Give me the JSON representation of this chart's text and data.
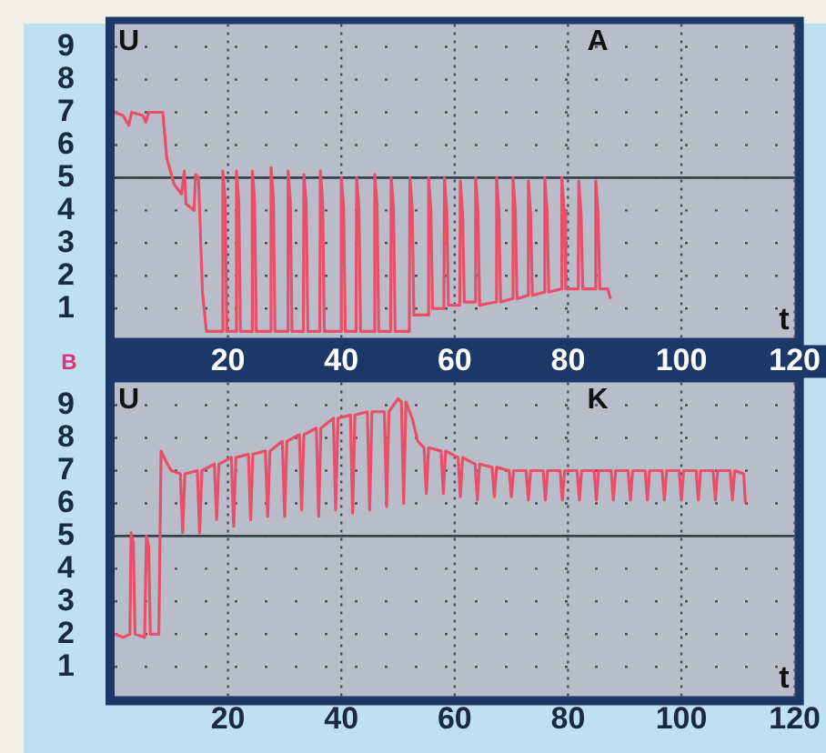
{
  "chart_data": [
    {
      "type": "line",
      "title": "A",
      "xlabel": "t",
      "ylabel": "U",
      "annotations": [
        "B"
      ],
      "xlim": [
        0,
        120
      ],
      "ylim": [
        0.1,
        9.7
      ],
      "xticks": [
        20,
        40,
        60,
        80,
        100,
        120
      ],
      "yticks": [
        1,
        2,
        3,
        4,
        5,
        6,
        7,
        8,
        9
      ],
      "grid": true,
      "legend": false,
      "marker": "none",
      "line_style": "solid",
      "ref_lines": [
        {
          "axis": "y",
          "value": 5,
          "color": "#33434a"
        }
      ],
      "series": [
        {
          "color": "#e8506a",
          "x": [
            0,
            1.5,
            2.5,
            3,
            5,
            5.5,
            6,
            8.5,
            9.2,
            10.5,
            11.8,
            12.3,
            12.6,
            14.0,
            14.3,
            14.8,
            15.5,
            16.2,
            19.0,
            19.1,
            19.5,
            19.8,
            21.4,
            21.5,
            21.9,
            22.2,
            24.2,
            24.3,
            24.7,
            25.0,
            27.5,
            27.6,
            28.0,
            28.3,
            30.5,
            30.6,
            31.0,
            31.3,
            33.3,
            33.4,
            33.8,
            34.1,
            36.2,
            36.3,
            36.7,
            37.0,
            39.9,
            40.0,
            40.4,
            40.7,
            42.6,
            42.7,
            43.1,
            43.4,
            45.8,
            45.9,
            46.3,
            46.6,
            48.7,
            48.8,
            49.2,
            49.5,
            52.0,
            52.1,
            52.5,
            52.8,
            55.3,
            55.4,
            55.8,
            56.1,
            58.1,
            58.2,
            58.6,
            58.9,
            60.9,
            61.0,
            61.4,
            61.7,
            63.6,
            63.7,
            64.1,
            64.4,
            67.3,
            67.4,
            67.8,
            68.1,
            70.2,
            70.3,
            70.7,
            71.0,
            72.9,
            73.0,
            73.4,
            73.7,
            75.8,
            75.9,
            76.3,
            76.6,
            78.8,
            78.9,
            79.3,
            79.6,
            81.8,
            81.9,
            82.3,
            82.6,
            84.8,
            84.9,
            85.3,
            85.6,
            87.0,
            87.5
          ],
          "values": [
            7.0,
            6.9,
            6.6,
            7.0,
            6.9,
            6.7,
            7.0,
            7.0,
            5.6,
            4.8,
            4.5,
            5.2,
            4.2,
            4.0,
            5.1,
            5.0,
            1.5,
            0.3,
            0.3,
            5.2,
            4.3,
            0.3,
            0.3,
            5.2,
            4.3,
            0.3,
            0.3,
            5.2,
            4.3,
            0.3,
            0.3,
            5.3,
            4.4,
            0.3,
            0.3,
            5.2,
            4.3,
            0.3,
            0.3,
            5.1,
            4.2,
            0.3,
            0.3,
            5.2,
            4.3,
            0.3,
            0.3,
            5.0,
            4.1,
            0.3,
            0.3,
            5.0,
            4.1,
            0.3,
            0.3,
            5.1,
            4.2,
            0.3,
            0.3,
            5.0,
            4.1,
            0.3,
            0.3,
            5.0,
            4.1,
            0.8,
            0.8,
            5.0,
            4.0,
            1.0,
            1.0,
            5.0,
            4.0,
            1.1,
            1.1,
            4.9,
            3.9,
            1.2,
            1.2,
            5.0,
            4.0,
            1.1,
            1.2,
            5.0,
            4.0,
            1.2,
            1.3,
            5.0,
            4.0,
            1.3,
            1.4,
            4.9,
            3.9,
            1.4,
            1.5,
            5.0,
            4.0,
            1.5,
            1.6,
            5.0,
            4.0,
            1.6,
            1.6,
            4.9,
            3.9,
            1.6,
            1.6,
            4.9,
            3.9,
            1.6,
            1.6,
            1.3
          ]
        }
      ]
    },
    {
      "type": "line",
      "title": "K",
      "xlabel": "t",
      "ylabel": "U",
      "xlim": [
        0,
        120
      ],
      "ylim": [
        0.1,
        9.7
      ],
      "xticks": [
        20,
        40,
        60,
        80,
        100,
        120
      ],
      "yticks": [
        1,
        2,
        3,
        4,
        5,
        6,
        7,
        8,
        9
      ],
      "grid": true,
      "legend": false,
      "marker": "none",
      "line_style": "solid",
      "ref_lines": [
        {
          "axis": "y",
          "value": 5,
          "color": "#33434a"
        }
      ],
      "series": [
        {
          "color": "#e8506a",
          "x": [
            0,
            1.5,
            2.7,
            2.9,
            3.3,
            3.6,
            5.3,
            5.6,
            6.0,
            6.3,
            7.8,
            8.2,
            9,
            10,
            11.6,
            12,
            12.4,
            14.6,
            15,
            15.4,
            17.6,
            18,
            18.4,
            20.6,
            21,
            21.4,
            23.6,
            24,
            24.4,
            26.6,
            27,
            27.4,
            29.6,
            30,
            30.4,
            32.6,
            33,
            33.4,
            35.6,
            36,
            36.4,
            38.6,
            39,
            39.4,
            41.6,
            42,
            42.4,
            44.6,
            45,
            45.4,
            47.6,
            48,
            48.4,
            50,
            50.6,
            51,
            51.4,
            52.5,
            53.5,
            54.6,
            55,
            55.4,
            57.6,
            58,
            58.4,
            60.6,
            61,
            61.4,
            63.6,
            64,
            64.4,
            66.6,
            67,
            67.4,
            69.6,
            70,
            70.4,
            72.6,
            73,
            73.4,
            75.6,
            76,
            76.4,
            78.6,
            79,
            79.4,
            81.6,
            82,
            82.4,
            84.6,
            85,
            85.4,
            87.6,
            88,
            88.4,
            90.6,
            91,
            91.4,
            93.6,
            94,
            94.4,
            96.6,
            97,
            97.4,
            99.6,
            100,
            100.4,
            102.6,
            103,
            103.4,
            105.6,
            106,
            106.4,
            108.6,
            109,
            109.4,
            111,
            111.3
          ],
          "values": [
            2.0,
            1.9,
            2.0,
            5.1,
            4.8,
            2.0,
            1.9,
            5.0,
            4.7,
            2.0,
            2.0,
            7.6,
            7.3,
            7.0,
            6.9,
            5.1,
            6.9,
            7.0,
            5.1,
            7.0,
            7.2,
            5.5,
            7.2,
            7.4,
            5.3,
            7.4,
            7.5,
            5.5,
            7.5,
            7.6,
            5.6,
            7.6,
            7.9,
            5.6,
            7.9,
            8.1,
            5.8,
            8.1,
            8.3,
            5.6,
            8.3,
            8.6,
            5.8,
            8.6,
            8.7,
            5.7,
            8.7,
            8.8,
            5.8,
            8.8,
            8.8,
            5.9,
            8.8,
            9.2,
            9.1,
            6.0,
            9.1,
            8.6,
            7.9,
            7.7,
            6.3,
            7.7,
            7.6,
            6.3,
            7.6,
            7.4,
            6.2,
            7.4,
            7.2,
            6.1,
            7.2,
            7.1,
            6.2,
            7.1,
            7.0,
            6.2,
            7.0,
            7.0,
            6.1,
            7.0,
            7.0,
            6.1,
            7.0,
            7.0,
            6.1,
            7.0,
            7.0,
            6.1,
            7.0,
            7.0,
            6.1,
            7.0,
            7.0,
            6.1,
            7.0,
            7.0,
            6.1,
            7.0,
            7.0,
            6.1,
            7.0,
            7.0,
            6.1,
            7.0,
            7.0,
            6.1,
            7.0,
            7.0,
            6.1,
            7.0,
            7.0,
            6.1,
            7.0,
            7.0,
            6.1,
            7.0,
            6.9,
            6.0
          ]
        }
      ]
    }
  ]
}
